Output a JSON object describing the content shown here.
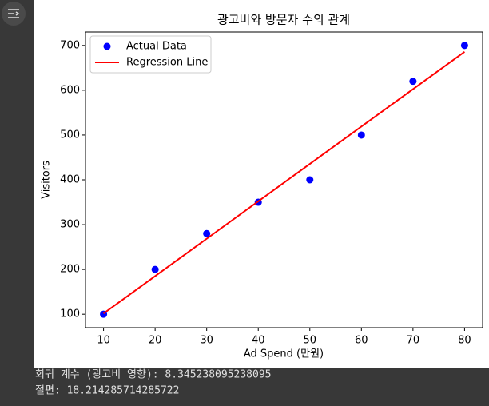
{
  "chart_data": {
    "type": "scatter",
    "title": "광고비와 방문자 수의 관계",
    "x_label": "Ad Spend (만원)",
    "y_label": "Visitors",
    "series": [
      {
        "name": "Actual Data",
        "mode": "markers",
        "color": "#0000ff",
        "x": [
          10,
          20,
          30,
          40,
          50,
          60,
          70,
          80
        ],
        "values": [
          100,
          200,
          280,
          350,
          400,
          500,
          620,
          700
        ]
      },
      {
        "name": "Regression Line",
        "mode": "line",
        "color": "#ff0000",
        "x": [
          10,
          80
        ],
        "values": [
          101.67,
          685.83
        ]
      }
    ],
    "xlim": [
      6.5,
      83.5
    ],
    "ylim": [
      70,
      730
    ],
    "xticks": [
      10,
      20,
      30,
      40,
      50,
      60,
      70,
      80
    ],
    "yticks": [
      100,
      200,
      300,
      400,
      500,
      600,
      700
    ],
    "legend": "upper left",
    "grid": false
  },
  "output": {
    "lines": [
      "회귀 계수 (광고비 영향): 8.345238095238095",
      "절편: 18.214285714285722"
    ]
  }
}
